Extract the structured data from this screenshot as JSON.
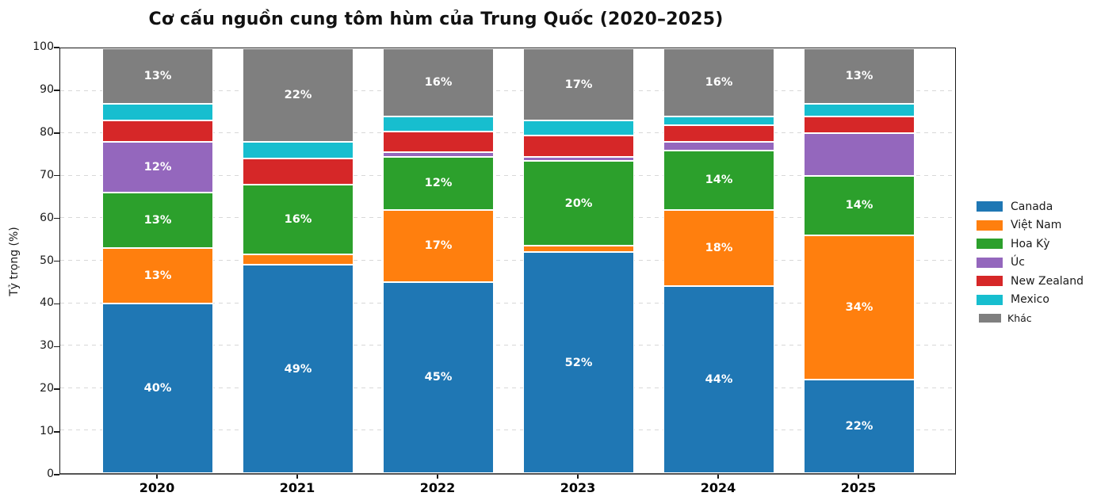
{
  "chart_data": {
    "type": "bar",
    "stacked": true,
    "title": "Cơ cấu nguồn cung tôm hùm của Trung Quốc (2020–2025)",
    "xlabel": "",
    "ylabel": "Tỷ trọng (%)",
    "ylim": [
      0,
      100
    ],
    "yticks": [
      0,
      10,
      20,
      30,
      40,
      50,
      60,
      70,
      80,
      90,
      100
    ],
    "grid": true,
    "grid_style": "dashed",
    "legend_position": "right-outside",
    "bar_label_threshold": 12,
    "bar_label_format": "{value}%",
    "bar_label_color": "#ffffff",
    "categories": [
      "2020",
      "2021",
      "2022",
      "2023",
      "2024",
      "2025"
    ],
    "series": [
      {
        "name": "Canada",
        "color": "#1f77b4",
        "values": [
          40,
          49,
          45,
          52,
          44,
          22
        ]
      },
      {
        "name": "Việt Nam",
        "color": "#ff7f0e",
        "values": [
          13,
          2.5,
          17,
          1.5,
          18,
          34
        ]
      },
      {
        "name": "Hoa Kỳ",
        "color": "#2ca02c",
        "values": [
          13,
          16.5,
          12.5,
          20,
          14,
          14
        ]
      },
      {
        "name": "Úc",
        "color": "#9467bd",
        "values": [
          12,
          0,
          1,
          1,
          2,
          10
        ]
      },
      {
        "name": "New Zealand",
        "color": "#d62728",
        "values": [
          5,
          6,
          5,
          5,
          4,
          4
        ]
      },
      {
        "name": "Mexico",
        "color": "#17becf",
        "values": [
          4,
          4,
          3.5,
          3.5,
          2,
          3
        ]
      },
      {
        "name": "Khác",
        "color": "#7f7f7f",
        "values": [
          13,
          22,
          16,
          17,
          16,
          13
        ]
      }
    ]
  }
}
